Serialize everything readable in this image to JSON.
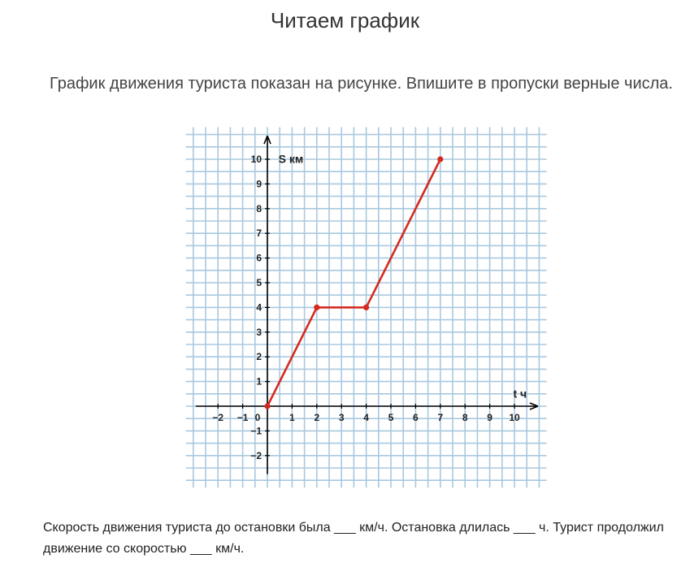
{
  "title": "Читаем график",
  "instructions": "График движения туриста показан на рисунке. Впишите в пропуски верные числа.",
  "question": "Скорость движения туриста до остановки была ___ км/ч. Остановка длилась ___ ч. Турист продолжил движение со скоростью ___ км/ч.",
  "colors": {
    "grid": "#a9c8df",
    "line": "#d42a1f",
    "axis": "#000000"
  },
  "chart_data": {
    "type": "line",
    "xlabel": "t ч",
    "ylabel": "S км",
    "x_ticks": [
      -2,
      -1,
      0,
      1,
      2,
      3,
      4,
      5,
      6,
      7,
      8,
      9,
      10
    ],
    "y_ticks": [
      -2,
      -1,
      1,
      2,
      3,
      4,
      5,
      6,
      7,
      8,
      9,
      10
    ],
    "xlim": [
      -3,
      11
    ],
    "ylim": [
      -3,
      11
    ],
    "grid": true,
    "series": [
      {
        "x": [
          0,
          2,
          4,
          7
        ],
        "y": [
          0,
          4,
          4,
          10
        ]
      }
    ]
  }
}
